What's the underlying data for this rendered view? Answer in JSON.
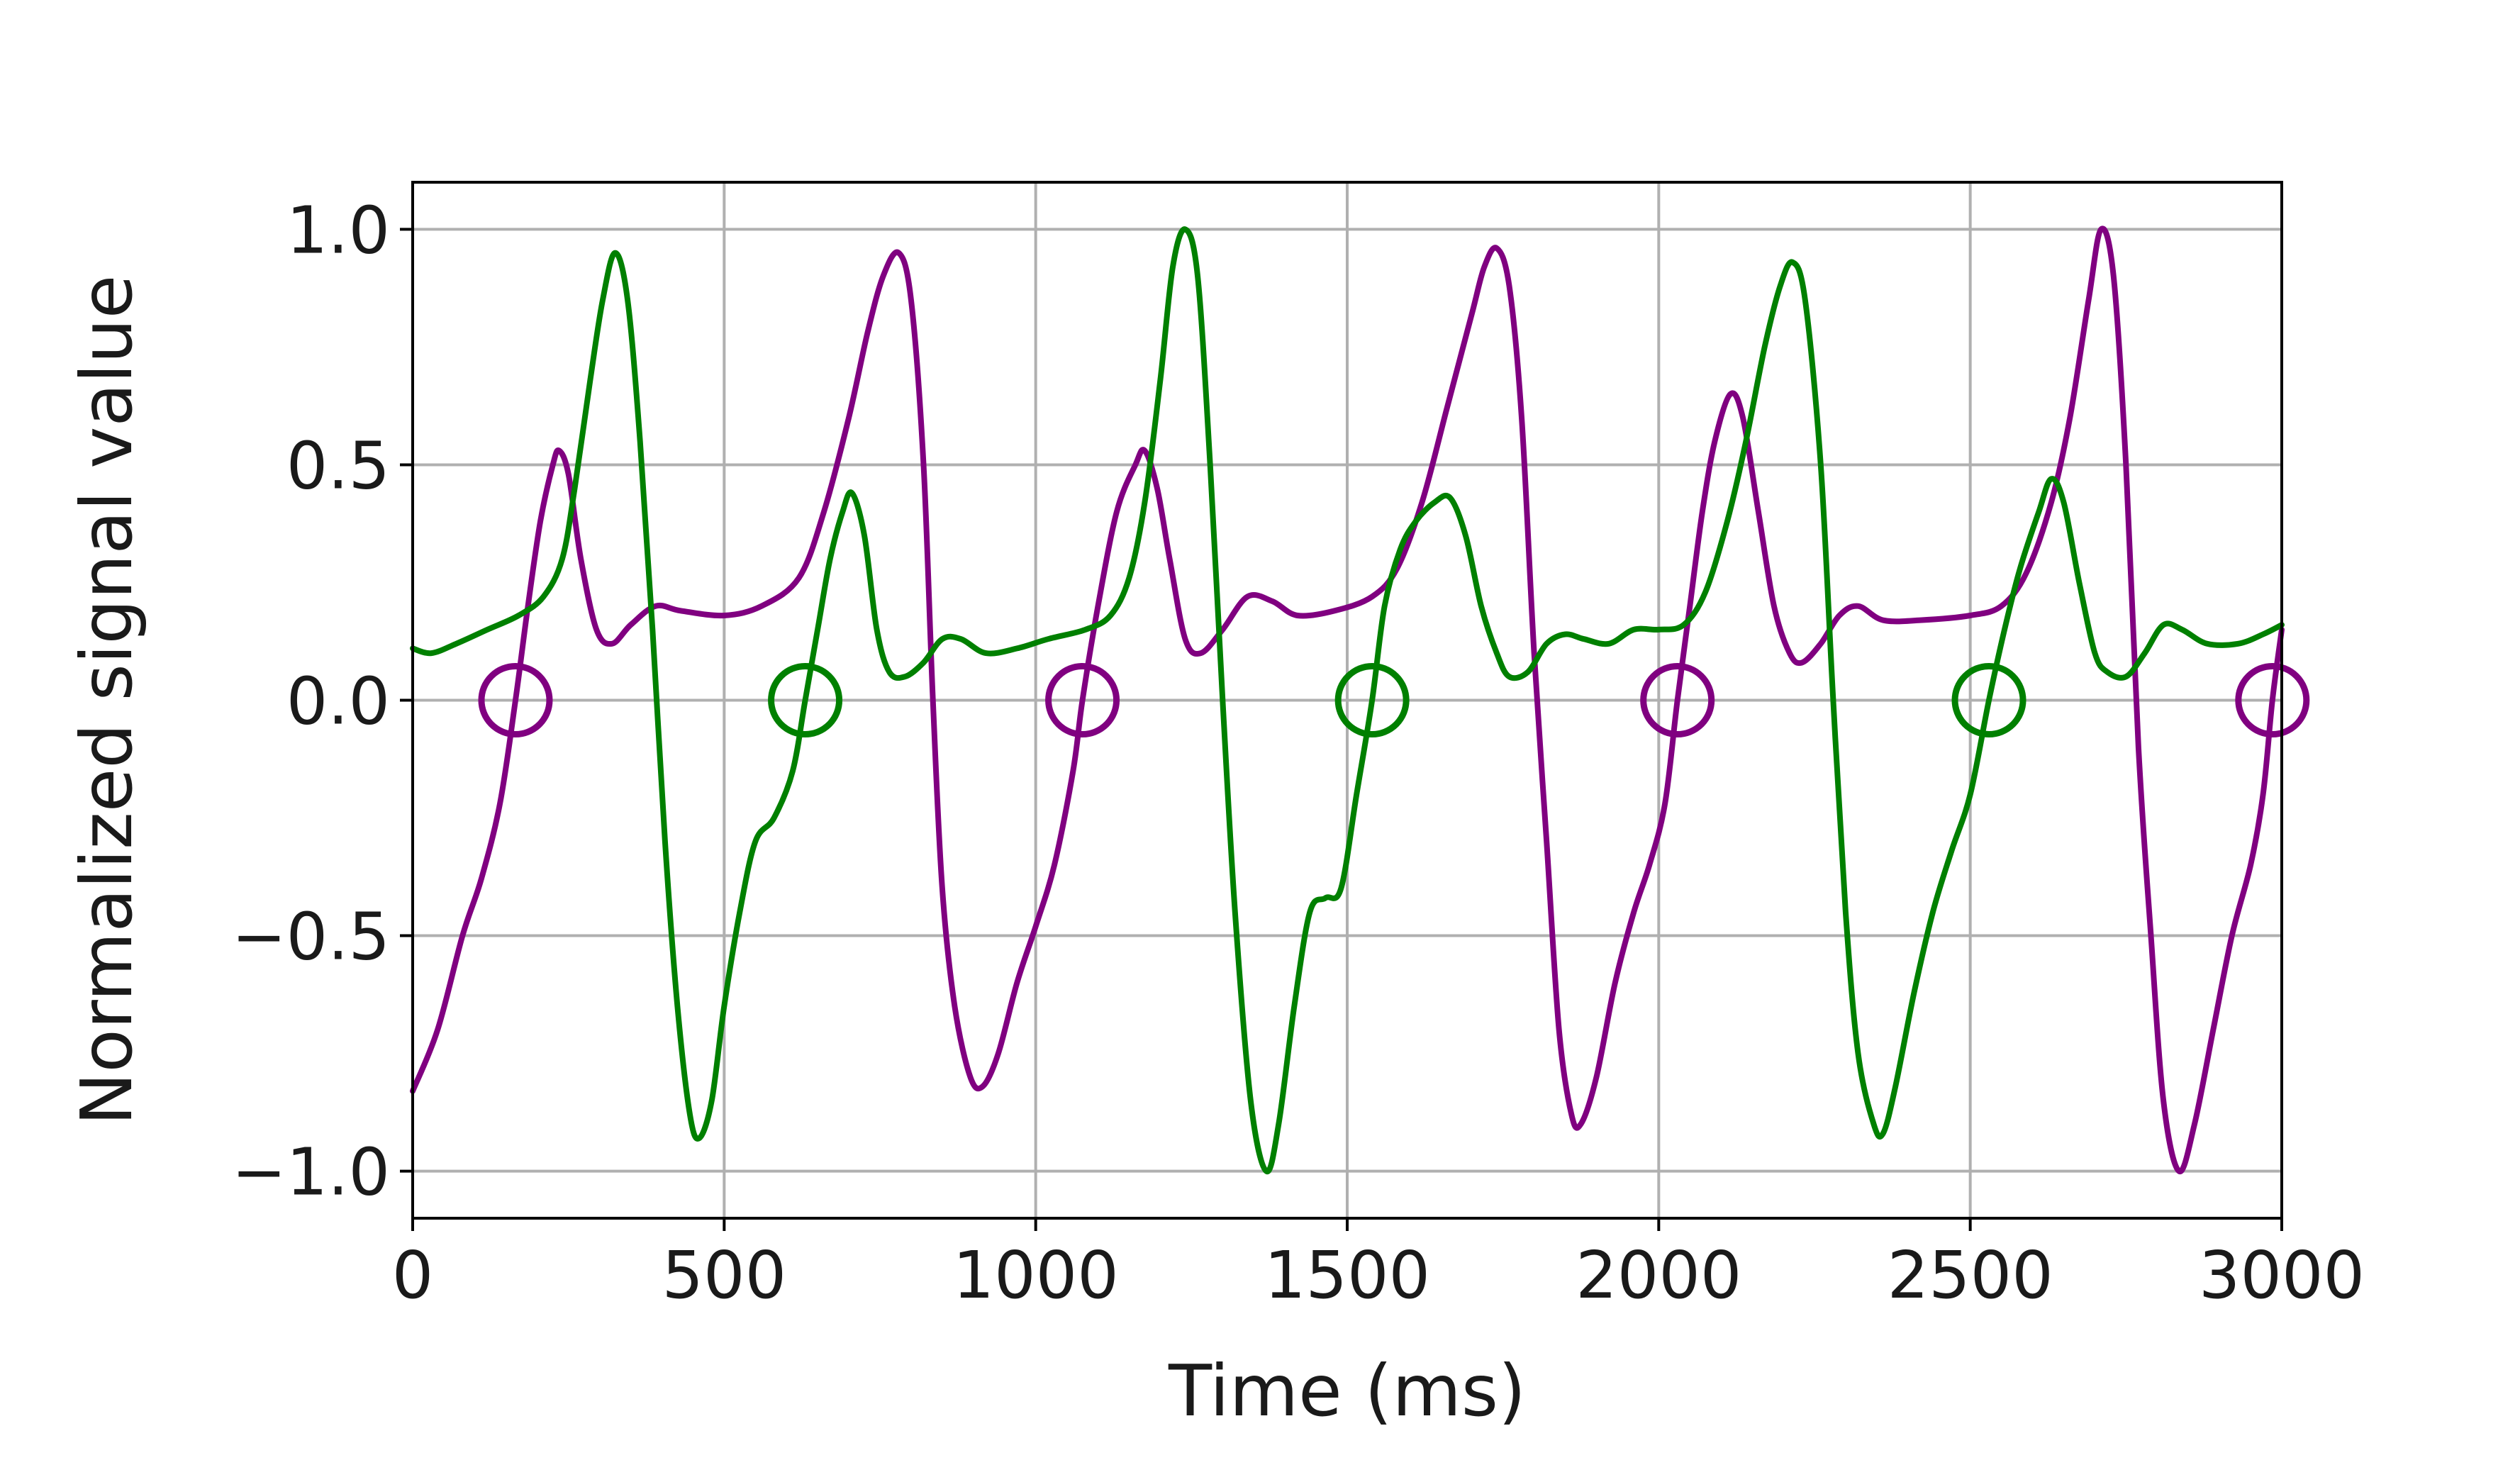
{
  "chart_data": {
    "type": "line",
    "title": "",
    "xlabel": "Time (ms)",
    "ylabel": "Normalized signal value",
    "xlim": [
      0,
      3000
    ],
    "ylim": [
      -1.1,
      1.1
    ],
    "x_ticks": [
      0,
      500,
      1000,
      1500,
      2000,
      2500,
      3000
    ],
    "x_tick_labels": [
      "0",
      "500",
      "1000",
      "1500",
      "2000",
      "2500",
      "3000"
    ],
    "y_ticks": [
      -1.0,
      -0.5,
      0.0,
      0.5,
      1.0
    ],
    "y_tick_labels": [
      "−1.0",
      "−0.5",
      "0.0",
      "0.5",
      "1.0"
    ],
    "grid": true,
    "legend": "none",
    "series": [
      {
        "color": "#800080",
        "points": [
          [
            0,
            -0.83
          ],
          [
            40,
            -0.7
          ],
          [
            80,
            -0.5
          ],
          [
            110,
            -0.38
          ],
          [
            140,
            -0.22
          ],
          [
            165,
            0.0
          ],
          [
            185,
            0.2
          ],
          [
            205,
            0.38
          ],
          [
            225,
            0.5
          ],
          [
            235,
            0.53
          ],
          [
            250,
            0.48
          ],
          [
            270,
            0.3
          ],
          [
            295,
            0.15
          ],
          [
            320,
            0.12
          ],
          [
            350,
            0.16
          ],
          [
            390,
            0.2
          ],
          [
            430,
            0.19
          ],
          [
            500,
            0.18
          ],
          [
            560,
            0.2
          ],
          [
            620,
            0.26
          ],
          [
            660,
            0.4
          ],
          [
            700,
            0.6
          ],
          [
            730,
            0.78
          ],
          [
            755,
            0.9
          ],
          [
            780,
            0.95
          ],
          [
            800,
            0.85
          ],
          [
            820,
            0.5
          ],
          [
            835,
            0.0
          ],
          [
            850,
            -0.4
          ],
          [
            870,
            -0.65
          ],
          [
            895,
            -0.8
          ],
          [
            915,
            -0.82
          ],
          [
            940,
            -0.75
          ],
          [
            970,
            -0.6
          ],
          [
            1000,
            -0.48
          ],
          [
            1030,
            -0.35
          ],
          [
            1060,
            -0.15
          ],
          [
            1075,
            0.0
          ],
          [
            1100,
            0.2
          ],
          [
            1130,
            0.4
          ],
          [
            1160,
            0.5
          ],
          [
            1175,
            0.53
          ],
          [
            1195,
            0.45
          ],
          [
            1215,
            0.3
          ],
          [
            1240,
            0.13
          ],
          [
            1265,
            0.1
          ],
          [
            1300,
            0.15
          ],
          [
            1340,
            0.22
          ],
          [
            1380,
            0.21
          ],
          [
            1420,
            0.18
          ],
          [
            1480,
            0.19
          ],
          [
            1540,
            0.22
          ],
          [
            1580,
            0.28
          ],
          [
            1620,
            0.42
          ],
          [
            1660,
            0.62
          ],
          [
            1700,
            0.82
          ],
          [
            1720,
            0.92
          ],
          [
            1740,
            0.96
          ],
          [
            1760,
            0.88
          ],
          [
            1780,
            0.6
          ],
          [
            1800,
            0.1
          ],
          [
            1820,
            -0.3
          ],
          [
            1840,
            -0.7
          ],
          [
            1860,
            -0.88
          ],
          [
            1875,
            -0.9
          ],
          [
            1900,
            -0.8
          ],
          [
            1930,
            -0.6
          ],
          [
            1960,
            -0.45
          ],
          [
            1985,
            -0.35
          ],
          [
            2010,
            -0.22
          ],
          [
            2030,
            0.0
          ],
          [
            2050,
            0.2
          ],
          [
            2070,
            0.4
          ],
          [
            2090,
            0.55
          ],
          [
            2115,
            0.65
          ],
          [
            2135,
            0.6
          ],
          [
            2160,
            0.4
          ],
          [
            2185,
            0.2
          ],
          [
            2210,
            0.1
          ],
          [
            2230,
            0.08
          ],
          [
            2260,
            0.12
          ],
          [
            2290,
            0.18
          ],
          [
            2320,
            0.2
          ],
          [
            2360,
            0.17
          ],
          [
            2420,
            0.17
          ],
          [
            2500,
            0.18
          ],
          [
            2550,
            0.2
          ],
          [
            2590,
            0.27
          ],
          [
            2630,
            0.42
          ],
          [
            2660,
            0.6
          ],
          [
            2690,
            0.85
          ],
          [
            2710,
            1.0
          ],
          [
            2730,
            0.9
          ],
          [
            2750,
            0.5
          ],
          [
            2770,
            -0.1
          ],
          [
            2790,
            -0.5
          ],
          [
            2810,
            -0.85
          ],
          [
            2835,
            -1.0
          ],
          [
            2860,
            -0.9
          ],
          [
            2890,
            -0.7
          ],
          [
            2920,
            -0.5
          ],
          [
            2950,
            -0.35
          ],
          [
            2970,
            -0.2
          ],
          [
            2985,
            0.0
          ],
          [
            3000,
            0.15
          ]
        ]
      },
      {
        "color": "#008000",
        "points": [
          [
            0,
            0.11
          ],
          [
            30,
            0.1
          ],
          [
            70,
            0.12
          ],
          [
            120,
            0.15
          ],
          [
            170,
            0.18
          ],
          [
            210,
            0.22
          ],
          [
            240,
            0.3
          ],
          [
            260,
            0.45
          ],
          [
            285,
            0.68
          ],
          [
            305,
            0.85
          ],
          [
            325,
            0.95
          ],
          [
            345,
            0.85
          ],
          [
            365,
            0.55
          ],
          [
            385,
            0.15
          ],
          [
            405,
            -0.3
          ],
          [
            425,
            -0.65
          ],
          [
            445,
            -0.88
          ],
          [
            460,
            -0.93
          ],
          [
            480,
            -0.85
          ],
          [
            500,
            -0.65
          ],
          [
            525,
            -0.45
          ],
          [
            550,
            -0.3
          ],
          [
            580,
            -0.25
          ],
          [
            610,
            -0.15
          ],
          [
            630,
            0.0
          ],
          [
            650,
            0.15
          ],
          [
            670,
            0.3
          ],
          [
            690,
            0.4
          ],
          [
            705,
            0.44
          ],
          [
            725,
            0.35
          ],
          [
            745,
            0.15
          ],
          [
            765,
            0.06
          ],
          [
            790,
            0.05
          ],
          [
            820,
            0.08
          ],
          [
            850,
            0.13
          ],
          [
            880,
            0.13
          ],
          [
            920,
            0.1
          ],
          [
            970,
            0.11
          ],
          [
            1020,
            0.13
          ],
          [
            1080,
            0.15
          ],
          [
            1120,
            0.18
          ],
          [
            1150,
            0.26
          ],
          [
            1175,
            0.42
          ],
          [
            1200,
            0.68
          ],
          [
            1220,
            0.92
          ],
          [
            1240,
            1.0
          ],
          [
            1260,
            0.9
          ],
          [
            1280,
            0.5
          ],
          [
            1300,
            0.0
          ],
          [
            1320,
            -0.45
          ],
          [
            1345,
            -0.85
          ],
          [
            1370,
            -1.0
          ],
          [
            1390,
            -0.9
          ],
          [
            1415,
            -0.65
          ],
          [
            1440,
            -0.45
          ],
          [
            1465,
            -0.42
          ],
          [
            1490,
            -0.4
          ],
          [
            1515,
            -0.2
          ],
          [
            1540,
            0.0
          ],
          [
            1560,
            0.2
          ],
          [
            1585,
            0.32
          ],
          [
            1610,
            0.38
          ],
          [
            1640,
            0.42
          ],
          [
            1665,
            0.43
          ],
          [
            1690,
            0.35
          ],
          [
            1715,
            0.2
          ],
          [
            1740,
            0.1
          ],
          [
            1760,
            0.05
          ],
          [
            1790,
            0.06
          ],
          [
            1820,
            0.12
          ],
          [
            1850,
            0.14
          ],
          [
            1880,
            0.13
          ],
          [
            1920,
            0.12
          ],
          [
            1960,
            0.15
          ],
          [
            2000,
            0.15
          ],
          [
            2040,
            0.16
          ],
          [
            2075,
            0.23
          ],
          [
            2110,
            0.38
          ],
          [
            2140,
            0.55
          ],
          [
            2170,
            0.75
          ],
          [
            2195,
            0.88
          ],
          [
            2215,
            0.93
          ],
          [
            2235,
            0.85
          ],
          [
            2260,
            0.5
          ],
          [
            2280,
            0.0
          ],
          [
            2300,
            -0.45
          ],
          [
            2320,
            -0.75
          ],
          [
            2345,
            -0.9
          ],
          [
            2360,
            -0.92
          ],
          [
            2380,
            -0.82
          ],
          [
            2410,
            -0.62
          ],
          [
            2440,
            -0.45
          ],
          [
            2470,
            -0.32
          ],
          [
            2500,
            -0.2
          ],
          [
            2530,
            0.0
          ],
          [
            2555,
            0.15
          ],
          [
            2580,
            0.28
          ],
          [
            2610,
            0.4
          ],
          [
            2630,
            0.47
          ],
          [
            2650,
            0.42
          ],
          [
            2675,
            0.25
          ],
          [
            2700,
            0.1
          ],
          [
            2720,
            0.06
          ],
          [
            2750,
            0.05
          ],
          [
            2780,
            0.1
          ],
          [
            2810,
            0.16
          ],
          [
            2840,
            0.15
          ],
          [
            2880,
            0.12
          ],
          [
            2930,
            0.12
          ],
          [
            2970,
            0.14
          ],
          [
            3000,
            0.16
          ]
        ]
      }
    ],
    "markers": [
      {
        "x": 165,
        "y": 0.0,
        "color": "#800080"
      },
      {
        "x": 630,
        "y": 0.0,
        "color": "#008000"
      },
      {
        "x": 1075,
        "y": 0.0,
        "color": "#800080"
      },
      {
        "x": 1540,
        "y": 0.0,
        "color": "#008000"
      },
      {
        "x": 2030,
        "y": 0.0,
        "color": "#800080"
      },
      {
        "x": 2530,
        "y": 0.0,
        "color": "#008000"
      },
      {
        "x": 2985,
        "y": 0.0,
        "color": "#800080"
      }
    ]
  }
}
